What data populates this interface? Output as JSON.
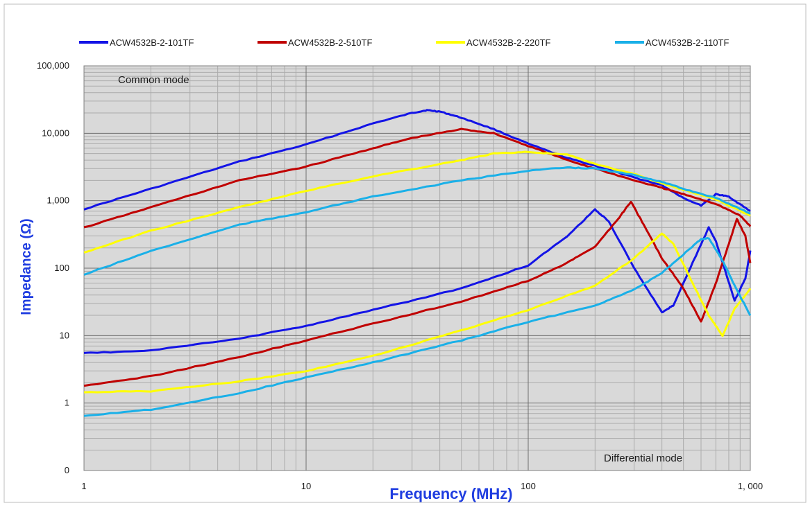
{
  "chart_data": {
    "type": "line",
    "title": "",
    "xlabel": "Frequency (MHz)",
    "ylabel": "Impedance (Ω)",
    "x_scale": "log",
    "y_scale": "log",
    "xlim": [
      1,
      1000
    ],
    "ylim": [
      0.1,
      100000
    ],
    "grid": true,
    "legend_position": "top",
    "x_ticks": [
      {
        "value": 1,
        "label": "1"
      },
      {
        "value": 10,
        "label": "10"
      },
      {
        "value": 100,
        "label": "100"
      },
      {
        "value": 1000,
        "label": "1, 000"
      }
    ],
    "y_ticks": [
      {
        "value": 0.1,
        "label": "0"
      },
      {
        "value": 1,
        "label": "1"
      },
      {
        "value": 10,
        "label": "10"
      },
      {
        "value": 100,
        "label": "100"
      },
      {
        "value": 1000,
        "label": "1,000"
      },
      {
        "value": 10000,
        "label": "10,000"
      },
      {
        "value": 100000,
        "label": "100,000"
      }
    ],
    "annotations": [
      "Common mode",
      "Differential mode"
    ],
    "series": [
      {
        "name": "ACW4532B-2-101TF",
        "color": "#1414e6",
        "common_mode": [
          [
            1,
            750
          ],
          [
            2,
            1500
          ],
          [
            5,
            3800
          ],
          [
            10,
            6800
          ],
          [
            20,
            14000
          ],
          [
            30,
            20000
          ],
          [
            35,
            22000
          ],
          [
            40,
            21000
          ],
          [
            50,
            17000
          ],
          [
            70,
            11500
          ],
          [
            100,
            7000
          ],
          [
            150,
            4300
          ],
          [
            200,
            3300
          ],
          [
            300,
            2200
          ],
          [
            400,
            1700
          ],
          [
            500,
            1100
          ],
          [
            600,
            850
          ],
          [
            700,
            1250
          ],
          [
            800,
            1150
          ],
          [
            1000,
            700
          ]
        ],
        "differential_mode": [
          [
            1,
            5.5
          ],
          [
            2,
            6
          ],
          [
            5,
            9
          ],
          [
            10,
            14
          ],
          [
            20,
            24
          ],
          [
            50,
            50
          ],
          [
            100,
            110
          ],
          [
            150,
            300
          ],
          [
            200,
            740
          ],
          [
            230,
            500
          ],
          [
            300,
            100
          ],
          [
            400,
            22
          ],
          [
            450,
            28
          ],
          [
            550,
            120
          ],
          [
            650,
            400
          ],
          [
            700,
            250
          ],
          [
            850,
            33
          ],
          [
            950,
            70
          ],
          [
            1000,
            180
          ]
        ]
      },
      {
        "name": "ACW4532B-2-510TF",
        "color": "#c00000",
        "common_mode": [
          [
            1,
            400
          ],
          [
            2,
            800
          ],
          [
            5,
            2000
          ],
          [
            10,
            3200
          ],
          [
            20,
            6000
          ],
          [
            30,
            8500
          ],
          [
            50,
            11500
          ],
          [
            70,
            10000
          ],
          [
            100,
            6500
          ],
          [
            150,
            4000
          ],
          [
            200,
            3000
          ],
          [
            300,
            2000
          ],
          [
            400,
            1550
          ],
          [
            500,
            1250
          ],
          [
            700,
            900
          ],
          [
            900,
            600
          ],
          [
            1000,
            420
          ]
        ],
        "differential_mode": [
          [
            1,
            1.8
          ],
          [
            2,
            2.5
          ],
          [
            5,
            4.8
          ],
          [
            10,
            8.5
          ],
          [
            20,
            15
          ],
          [
            50,
            32
          ],
          [
            100,
            65
          ],
          [
            150,
            120
          ],
          [
            200,
            210
          ],
          [
            250,
            500
          ],
          [
            290,
            970
          ],
          [
            330,
            450
          ],
          [
            400,
            140
          ],
          [
            500,
            50
          ],
          [
            600,
            16
          ],
          [
            700,
            60
          ],
          [
            800,
            230
          ],
          [
            870,
            540
          ],
          [
            950,
            300
          ],
          [
            1000,
            120
          ]
        ]
      },
      {
        "name": "ACW4532B-2-220TF",
        "color": "#ffff00",
        "common_mode": [
          [
            1,
            170
          ],
          [
            2,
            360
          ],
          [
            5,
            800
          ],
          [
            10,
            1400
          ],
          [
            20,
            2300
          ],
          [
            50,
            4000
          ],
          [
            70,
            5000
          ],
          [
            100,
            5300
          ],
          [
            150,
            4800
          ],
          [
            200,
            3500
          ],
          [
            300,
            2500
          ],
          [
            400,
            1800
          ],
          [
            500,
            1450
          ],
          [
            700,
            1050
          ],
          [
            1000,
            600
          ]
        ],
        "differential_mode": [
          [
            1,
            1.45
          ],
          [
            2,
            1.5
          ],
          [
            5,
            2.1
          ],
          [
            10,
            3
          ],
          [
            20,
            5
          ],
          [
            50,
            12
          ],
          [
            100,
            24
          ],
          [
            200,
            55
          ],
          [
            300,
            140
          ],
          [
            400,
            330
          ],
          [
            450,
            230
          ],
          [
            550,
            60
          ],
          [
            650,
            20
          ],
          [
            750,
            10
          ],
          [
            850,
            25
          ],
          [
            1000,
            50
          ]
        ]
      },
      {
        "name": "ACW4532B-2-110TF",
        "color": "#1ab0e8",
        "common_mode": [
          [
            1,
            80
          ],
          [
            2,
            180
          ],
          [
            5,
            440
          ],
          [
            10,
            680
          ],
          [
            20,
            1150
          ],
          [
            50,
            2000
          ],
          [
            100,
            2800
          ],
          [
            150,
            3100
          ],
          [
            200,
            3000
          ],
          [
            300,
            2400
          ],
          [
            400,
            1900
          ],
          [
            500,
            1500
          ],
          [
            700,
            1100
          ],
          [
            1000,
            650
          ]
        ],
        "differential_mode": [
          [
            1,
            0.65
          ],
          [
            2,
            0.8
          ],
          [
            5,
            1.4
          ],
          [
            10,
            2.4
          ],
          [
            20,
            4
          ],
          [
            50,
            8.5
          ],
          [
            100,
            16
          ],
          [
            200,
            28
          ],
          [
            300,
            48
          ],
          [
            400,
            85
          ],
          [
            500,
            160
          ],
          [
            600,
            270
          ],
          [
            650,
            280
          ],
          [
            750,
            130
          ],
          [
            850,
            55
          ],
          [
            1000,
            20
          ]
        ]
      }
    ]
  }
}
